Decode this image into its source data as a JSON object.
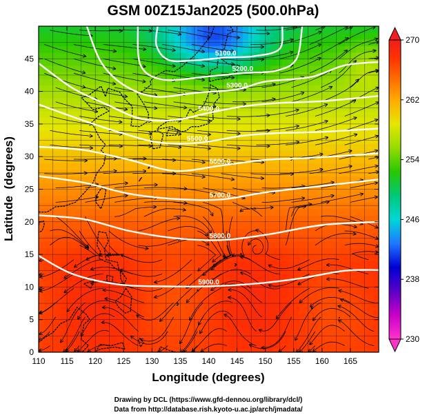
{
  "chart_data": {
    "type": "heatmap",
    "title": "GSM 00Z15Jan2025 (500.0hPa)",
    "xlabel": "Longitude (degrees)",
    "ylabel": "Latitude  (degrees)",
    "xlim": [
      110,
      170
    ],
    "ylim": [
      0,
      50
    ],
    "x_ticks": [
      "110",
      "115",
      "120",
      "125",
      "130",
      "135",
      "140",
      "145",
      "150",
      "155",
      "160",
      "165"
    ],
    "y_ticks": [
      "0",
      "5",
      "10",
      "15",
      "20",
      "25",
      "30",
      "35",
      "40",
      "45"
    ],
    "colorbar": {
      "min": 230,
      "max": 270,
      "ticks": [
        "270",
        "262",
        "254",
        "246",
        "238",
        "230"
      ],
      "colors": [
        "#ff33cc",
        "#c800c8",
        "#5a00c8",
        "#0000d2",
        "#1e78ff",
        "#00d7d7",
        "#00c878",
        "#28c800",
        "#96dc00",
        "#e6e600",
        "#ffaa00",
        "#ff6400",
        "#ff3200",
        "#f01e1e"
      ]
    },
    "contours": [
      {
        "label": "5100.0",
        "points": [
          [
            131,
            50
          ],
          [
            130.8,
            47
          ],
          [
            133,
            44.8
          ],
          [
            138,
            44.8
          ],
          [
            143,
            45.2
          ],
          [
            148,
            45.4
          ],
          [
            152.5,
            46.5
          ],
          [
            153,
            50
          ]
        ]
      },
      {
        "label": "5200.0",
        "points": [
          [
            127.5,
            50
          ],
          [
            128,
            44
          ],
          [
            132,
            41.8
          ],
          [
            140,
            42.3
          ],
          [
            146,
            42.8
          ],
          [
            152,
            43.2
          ],
          [
            155.5,
            45
          ],
          [
            156.5,
            50
          ]
        ]
      },
      {
        "label": "5300.0",
        "points": [
          [
            118.5,
            50
          ],
          [
            121,
            44.5
          ],
          [
            125,
            41
          ],
          [
            130.5,
            39.2
          ],
          [
            138,
            39.8
          ],
          [
            145,
            40.3
          ],
          [
            150,
            41.5
          ],
          [
            158,
            42.2
          ],
          [
            164,
            44
          ],
          [
            170,
            44.5
          ]
        ]
      },
      {
        "label": "5400.0",
        "points": [
          [
            110,
            44.3
          ],
          [
            116,
            40.5
          ],
          [
            122,
            38
          ],
          [
            128,
            35.8
          ],
          [
            134,
            35.6
          ],
          [
            140,
            36.7
          ],
          [
            146,
            37.7
          ],
          [
            152,
            38.2
          ],
          [
            160,
            38.5
          ],
          [
            170,
            39.3
          ]
        ]
      },
      {
        "label": "5500.0",
        "points": [
          [
            110,
            38
          ],
          [
            117,
            35.8
          ],
          [
            124,
            33.8
          ],
          [
            131,
            32.2
          ],
          [
            138,
            32.1
          ],
          [
            146,
            33.2
          ],
          [
            152,
            33.6
          ],
          [
            160,
            33.8
          ],
          [
            170,
            34.3
          ]
        ]
      },
      {
        "label": "5600.0",
        "points": [
          [
            110,
            31.5
          ],
          [
            118,
            31
          ],
          [
            126,
            29.5
          ],
          [
            134,
            27.8
          ],
          [
            142,
            28.6
          ],
          [
            150,
            29.5
          ],
          [
            158,
            29.8
          ],
          [
            170,
            30.5
          ]
        ]
      },
      {
        "label": "5700.0",
        "points": [
          [
            110,
            27
          ],
          [
            118,
            26
          ],
          [
            126,
            24.3
          ],
          [
            134,
            23.5
          ],
          [
            142,
            23.4
          ],
          [
            150,
            24.5
          ],
          [
            160,
            25.5
          ],
          [
            170,
            26.5
          ]
        ]
      },
      {
        "label": "5800.0",
        "points": [
          [
            110,
            21
          ],
          [
            118,
            20.4
          ],
          [
            126,
            18.6
          ],
          [
            134,
            17.5
          ],
          [
            142,
            17.2
          ],
          [
            150,
            18
          ],
          [
            160,
            19.5
          ],
          [
            170,
            20
          ]
        ]
      },
      {
        "label": "5900.0",
        "points": [
          [
            110,
            14.8
          ],
          [
            116,
            12
          ],
          [
            124,
            10.4
          ],
          [
            132,
            10.1
          ],
          [
            140,
            10.1
          ],
          [
            148,
            10.5
          ],
          [
            156,
            11.3
          ],
          [
            164,
            12.5
          ],
          [
            170,
            12.6
          ]
        ]
      }
    ],
    "credits": [
      "Drawing by DCL (https://www.gfd-dennou.org/library/dcl/)",
      "Data from http://database.rish.kyoto-u.ac.jp/arch/jmadata/"
    ]
  }
}
